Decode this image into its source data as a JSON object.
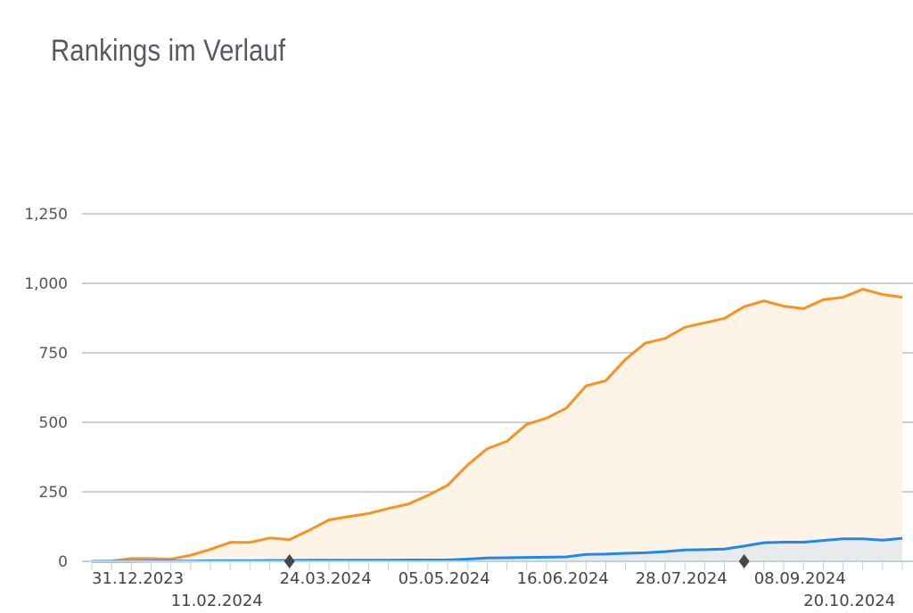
{
  "chart_data": {
    "type": "area",
    "title": "Rankings im Verlauf",
    "xlabel": "",
    "ylabel": "",
    "ylim": [
      0,
      1250
    ],
    "yticks": [
      0,
      250,
      500,
      750,
      1000,
      1250
    ],
    "ytick_labels": [
      "0",
      "250",
      "500",
      "750",
      "1,000",
      "1,250"
    ],
    "grid": true,
    "point_count": 42,
    "xtick_labels": [
      {
        "index": 0,
        "label": "31.12.2023"
      },
      {
        "index": 4,
        "label": "11.02.2024"
      },
      {
        "index": 9.5,
        "label": "24.03.2024"
      },
      {
        "index": 15.5,
        "label": "05.05.2024"
      },
      {
        "index": 21.5,
        "label": "16.06.2024"
      },
      {
        "index": 27.5,
        "label": "28.07.2024"
      },
      {
        "index": 33.5,
        "label": "08.09.2024"
      },
      {
        "index": 36,
        "label": "20.10.2024"
      }
    ],
    "markers": [
      {
        "index": 10
      },
      {
        "index": 33
      }
    ],
    "series": [
      {
        "name": "orange",
        "color": "#f7931e",
        "fill": "#fdf3e7",
        "values": [
          0,
          1,
          10,
          10,
          8,
          22,
          43,
          68,
          68,
          84,
          78,
          112,
          149,
          161,
          172,
          190,
          206,
          237,
          274,
          346,
          405,
          432,
          493,
          515,
          551,
          631,
          650,
          727,
          785,
          802,
          842,
          858,
          874,
          916,
          937,
          918,
          909,
          941,
          950,
          979,
          960,
          950
        ]
      },
      {
        "name": "blue",
        "color": "#1e88f0",
        "fill": "#e9eaec",
        "values": [
          0,
          0,
          0,
          1,
          1,
          1,
          2,
          2,
          2,
          3,
          3,
          4,
          4,
          4,
          4,
          4,
          5,
          5,
          5,
          8,
          12,
          13,
          14,
          15,
          16,
          25,
          26,
          29,
          31,
          35,
          41,
          42,
          44,
          55,
          67,
          69,
          69,
          75,
          81,
          81,
          76,
          83
        ]
      }
    ]
  }
}
